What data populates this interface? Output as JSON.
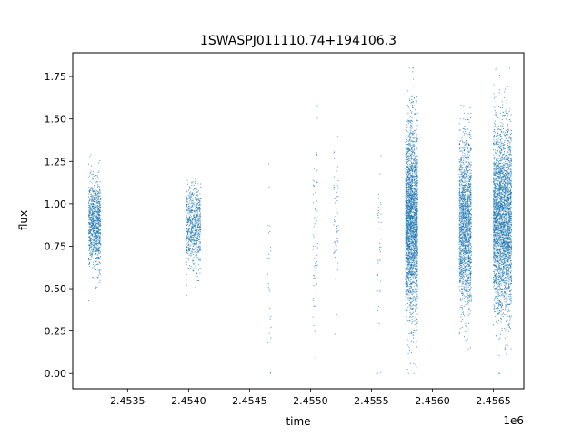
{
  "chart_data": {
    "type": "scatter",
    "title": "1SWASPJ011110.74+194106.3",
    "xlabel": "time",
    "ylabel": "flux",
    "x_offset_label": "1e6",
    "xlim": [
      2.45305,
      2.45675
    ],
    "ylim": [
      -0.09,
      1.89
    ],
    "x_ticks": [
      2.4535,
      2.454,
      2.4545,
      2.455,
      2.4555,
      2.456,
      2.4565
    ],
    "x_tick_labels": [
      "2.4535",
      "2.4540",
      "2.4545",
      "2.4550",
      "2.4555",
      "2.4560",
      "2.4565"
    ],
    "y_ticks": [
      0.0,
      0.25,
      0.5,
      0.75,
      1.0,
      1.25,
      1.5,
      1.75
    ],
    "y_tick_labels": [
      "0.00",
      "0.25",
      "0.50",
      "0.75",
      "1.00",
      "1.25",
      "1.50",
      "1.75"
    ],
    "grid": false,
    "marker_color": "#1f77b4",
    "series": [
      {
        "clusters": [
          {
            "x_range": [
              2.45318,
              2.45328
            ],
            "y_center": 0.88,
            "y_spread": 0.13,
            "count": 900
          },
          {
            "x_range": [
              2.45398,
              2.4541
            ],
            "y_center": 0.86,
            "y_spread": 0.12,
            "count": 700
          },
          {
            "x_range": [
              2.45465,
              2.45468
            ],
            "y_center": 0.75,
            "y_spread": 0.35,
            "count": 25
          },
          {
            "x_range": [
              2.45502,
              2.45506
            ],
            "y_center": 0.8,
            "y_spread": 0.3,
            "count": 70
          },
          {
            "x_range": [
              2.45519,
              2.45523
            ],
            "y_center": 0.85,
            "y_spread": 0.25,
            "count": 60
          },
          {
            "x_range": [
              2.45555,
              2.45558
            ],
            "y_center": 0.7,
            "y_spread": 0.3,
            "count": 40
          },
          {
            "x_range": [
              2.45578,
              2.45588
            ],
            "y_center": 0.9,
            "y_spread": 0.28,
            "count": 2600
          },
          {
            "x_range": [
              2.45622,
              2.45632
            ],
            "y_center": 0.88,
            "y_spread": 0.25,
            "count": 1700
          },
          {
            "x_range": [
              2.4565,
              2.45665
            ],
            "y_center": 0.9,
            "y_spread": 0.27,
            "count": 3000
          }
        ]
      }
    ]
  }
}
